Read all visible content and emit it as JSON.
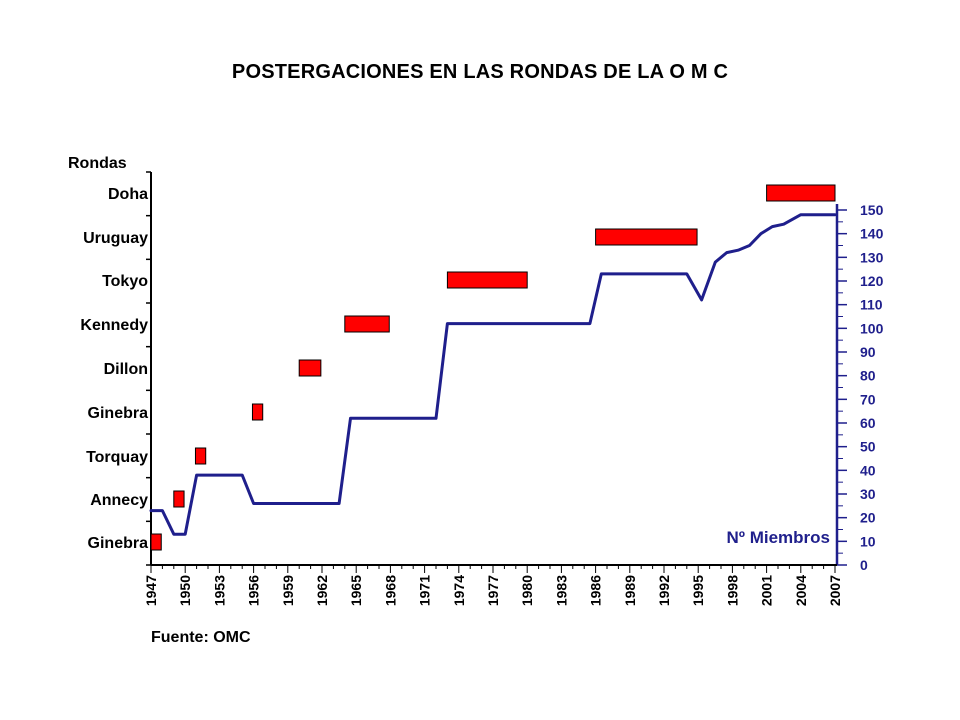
{
  "page": {
    "title": "POSTERGACIONES EN LAS RONDAS DE LA O M C",
    "source": "Fuente: OMC"
  },
  "chart_data": {
    "type": "line",
    "title": "POSTERGACIONES EN LAS RONDAS DE LA O M C",
    "left_axis_label": "Rondas",
    "right_axis_label": "Nº Miembros",
    "colors": {
      "members_line": "#1f1f8c",
      "round_bar": "#ff0000",
      "right_axis": "#1f1f8c",
      "axis": "#000000"
    },
    "x_ticks": [
      "1947",
      "1950",
      "1953",
      "1956",
      "1959",
      "1962",
      "1965",
      "1968",
      "1971",
      "1974",
      "1977",
      "1980",
      "1983",
      "1986",
      "1989",
      "1992",
      "1995",
      "1998",
      "2001",
      "2004",
      "2007"
    ],
    "xlim": [
      1947,
      2007
    ],
    "left_categories": [
      "Ginebra",
      "Annecy",
      "Torquay",
      "Ginebra",
      "Dillon",
      "Kennedy",
      "Tokyo",
      "Uruguay",
      "Doha"
    ],
    "ylim_right": [
      0,
      150
    ],
    "y_ticks_right": [
      0,
      10,
      20,
      30,
      40,
      50,
      60,
      70,
      80,
      90,
      100,
      110,
      120,
      130,
      140,
      150
    ],
    "rounds": [
      {
        "name": "Ginebra",
        "start": 1947.0,
        "end": 1947.9
      },
      {
        "name": "Annecy",
        "start": 1949.0,
        "end": 1949.9
      },
      {
        "name": "Torquay",
        "start": 1950.9,
        "end": 1951.8
      },
      {
        "name": "Ginebra",
        "start": 1955.9,
        "end": 1956.8
      },
      {
        "name": "Dillon",
        "start": 1960.0,
        "end": 1961.9
      },
      {
        "name": "Kennedy",
        "start": 1964.0,
        "end": 1967.9
      },
      {
        "name": "Tokyo",
        "start": 1973.0,
        "end": 1980.0
      },
      {
        "name": "Uruguay",
        "start": 1986.0,
        "end": 1994.9
      },
      {
        "name": "Doha",
        "start": 2001.0,
        "end": 2007.0
      }
    ],
    "series": [
      {
        "name": "Nº Miembros",
        "x": [
          1947,
          1948,
          1949,
          1950,
          1951,
          1952,
          1953,
          1954,
          1955,
          1956,
          1958,
          1960,
          1962,
          1963.5,
          1964.5,
          1966,
          1968,
          1970,
          1972,
          1973,
          1975,
          1978,
          1981,
          1984,
          1985.5,
          1986.5,
          1988,
          1991,
          1994,
          1995.3,
          1996.5,
          1997.5,
          1998.5,
          1999.5,
          2000.5,
          2001.5,
          2002.5,
          2004,
          2005,
          2007
        ],
        "y": [
          23,
          23,
          13,
          13,
          38,
          38,
          38,
          38,
          38,
          26,
          26,
          26,
          26,
          26,
          62,
          62,
          62,
          62,
          62,
          102,
          102,
          102,
          102,
          102,
          102,
          123,
          123,
          123,
          123,
          112,
          128,
          132,
          133,
          135,
          140,
          143,
          144,
          148,
          148,
          148
        ]
      }
    ]
  }
}
